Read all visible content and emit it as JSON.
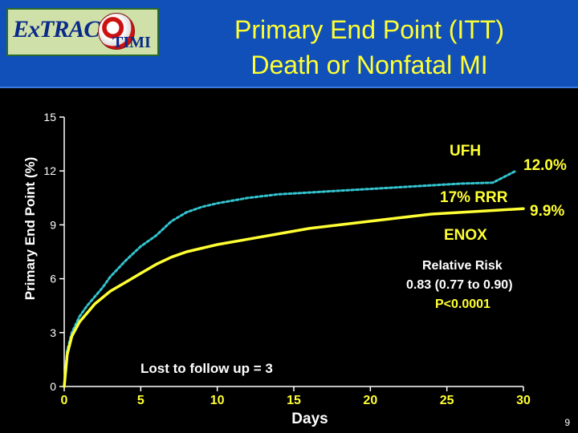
{
  "header": {
    "logo_text": "ExTRACT TIMI 25",
    "title_line1": "Primary End Point (ITT)",
    "title_line2": "Death or Nonfatal MI"
  },
  "colors": {
    "background": "#000000",
    "header": "#1150b8",
    "title": "#ffff33",
    "enox": "#ffff33",
    "ufh": "#33c4d0",
    "axis": "#ffffff"
  },
  "annotations": {
    "ufh_label": "UFH",
    "ufh_end": "12.0%",
    "rrr": "17% RRR",
    "enox_end": "9.9%",
    "enox_label": "ENOX",
    "rr_title": "Relative Risk",
    "rr_value": "0.83 (0.77 to 0.90)",
    "p_value": "P<0.0001",
    "lost": "Lost to follow up = 3"
  },
  "page_number": "9",
  "chart_data": {
    "type": "line",
    "xlabel": "Days",
    "ylabel": "Primary End Point (%)",
    "xlim": [
      0,
      30
    ],
    "ylim": [
      0,
      15
    ],
    "x_ticks": [
      0,
      5,
      10,
      15,
      20,
      25,
      30
    ],
    "y_ticks": [
      0,
      3,
      6,
      9,
      12,
      15
    ],
    "grid": false,
    "series": [
      {
        "name": "UFH",
        "color": "#33c4d0",
        "style": "dashed",
        "x": [
          0,
          0.2,
          0.5,
          1,
          1.5,
          2,
          2.5,
          3,
          4,
          5,
          6,
          7,
          8,
          9,
          10,
          12,
          14,
          16,
          18,
          20,
          22,
          24,
          26,
          28,
          29.5
        ],
        "y": [
          0,
          2.0,
          3.0,
          3.9,
          4.5,
          5.0,
          5.5,
          6.1,
          7.0,
          7.8,
          8.4,
          9.2,
          9.7,
          10.0,
          10.2,
          10.5,
          10.7,
          10.8,
          10.9,
          11.0,
          11.1,
          11.2,
          11.3,
          11.35,
          12.0
        ]
      },
      {
        "name": "ENOX",
        "color": "#ffff33",
        "style": "solid",
        "x": [
          0,
          0.2,
          0.5,
          1,
          1.5,
          2,
          3,
          4,
          5,
          6,
          7,
          8,
          9,
          10,
          12,
          14,
          16,
          18,
          20,
          22,
          24,
          26,
          28,
          30
        ],
        "y": [
          0,
          1.8,
          2.8,
          3.6,
          4.1,
          4.6,
          5.3,
          5.8,
          6.3,
          6.8,
          7.2,
          7.5,
          7.7,
          7.9,
          8.2,
          8.5,
          8.8,
          9.0,
          9.2,
          9.4,
          9.6,
          9.7,
          9.8,
          9.9
        ]
      }
    ]
  }
}
